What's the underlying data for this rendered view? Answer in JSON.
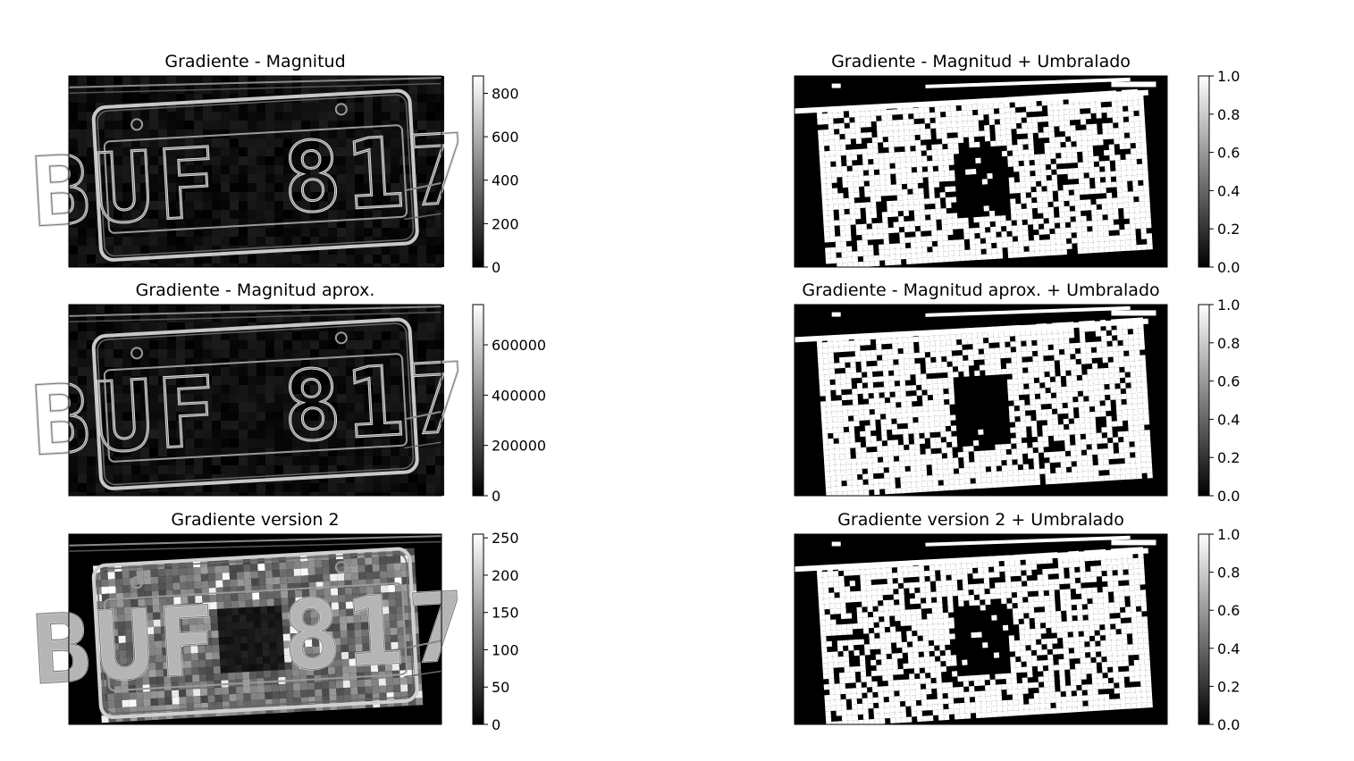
{
  "chart_data": [
    {
      "type": "heatmap",
      "title": "Gradiente - Magnitud",
      "colormap": "gray",
      "content": "license plate BUF 817 edge magnitude",
      "colorbar": {
        "vmin": 0,
        "vmax": 880,
        "ticks": [
          0,
          200,
          400,
          600,
          800
        ],
        "tick_labels": [
          "0",
          "200",
          "400",
          "600",
          "800"
        ]
      }
    },
    {
      "type": "heatmap",
      "title": "Gradiente - Magnitud + Umbralado",
      "colormap": "gray",
      "content": "binary thresholded edges",
      "colorbar": {
        "vmin": 0,
        "vmax": 1,
        "ticks": [
          0,
          0.2,
          0.4,
          0.6,
          0.8,
          1.0
        ],
        "tick_labels": [
          "0.0",
          "0.2",
          "0.4",
          "0.6",
          "0.8",
          "1.0"
        ]
      }
    },
    {
      "type": "heatmap",
      "title": "Gradiente - Magnitud aprox.",
      "colormap": "gray",
      "content": "license plate BUF 817 approximate edge magnitude",
      "colorbar": {
        "vmin": 0,
        "vmax": 760000,
        "ticks": [
          0,
          200000,
          400000,
          600000
        ],
        "tick_labels": [
          "0",
          "200000",
          "400000",
          "600000"
        ]
      }
    },
    {
      "type": "heatmap",
      "title": "Gradiente - Magnitud aprox. + Umbralado",
      "colormap": "gray",
      "content": "binary thresholded edges",
      "colorbar": {
        "vmin": 0,
        "vmax": 1,
        "ticks": [
          0,
          0.2,
          0.4,
          0.6,
          0.8,
          1.0
        ],
        "tick_labels": [
          "0.0",
          "0.2",
          "0.4",
          "0.6",
          "0.8",
          "1.0"
        ]
      }
    },
    {
      "type": "heatmap",
      "title": "Gradiente version 2",
      "colormap": "gray",
      "content": "license plate gradient version 2",
      "colorbar": {
        "vmin": 0,
        "vmax": 255,
        "ticks": [
          0,
          50,
          100,
          150,
          200,
          250
        ],
        "tick_labels": [
          "0",
          "50",
          "100",
          "150",
          "200",
          "250"
        ]
      }
    },
    {
      "type": "heatmap",
      "title": "Gradiente version 2 + Umbralado",
      "colormap": "gray",
      "content": "binary thresholded edges",
      "colorbar": {
        "vmin": 0,
        "vmax": 1,
        "ticks": [
          0,
          0.2,
          0.4,
          0.6,
          0.8,
          1.0
        ],
        "tick_labels": [
          "0.0",
          "0.2",
          "0.4",
          "0.6",
          "0.8",
          "1.0"
        ]
      }
    }
  ],
  "plate_text": "BUF 817"
}
